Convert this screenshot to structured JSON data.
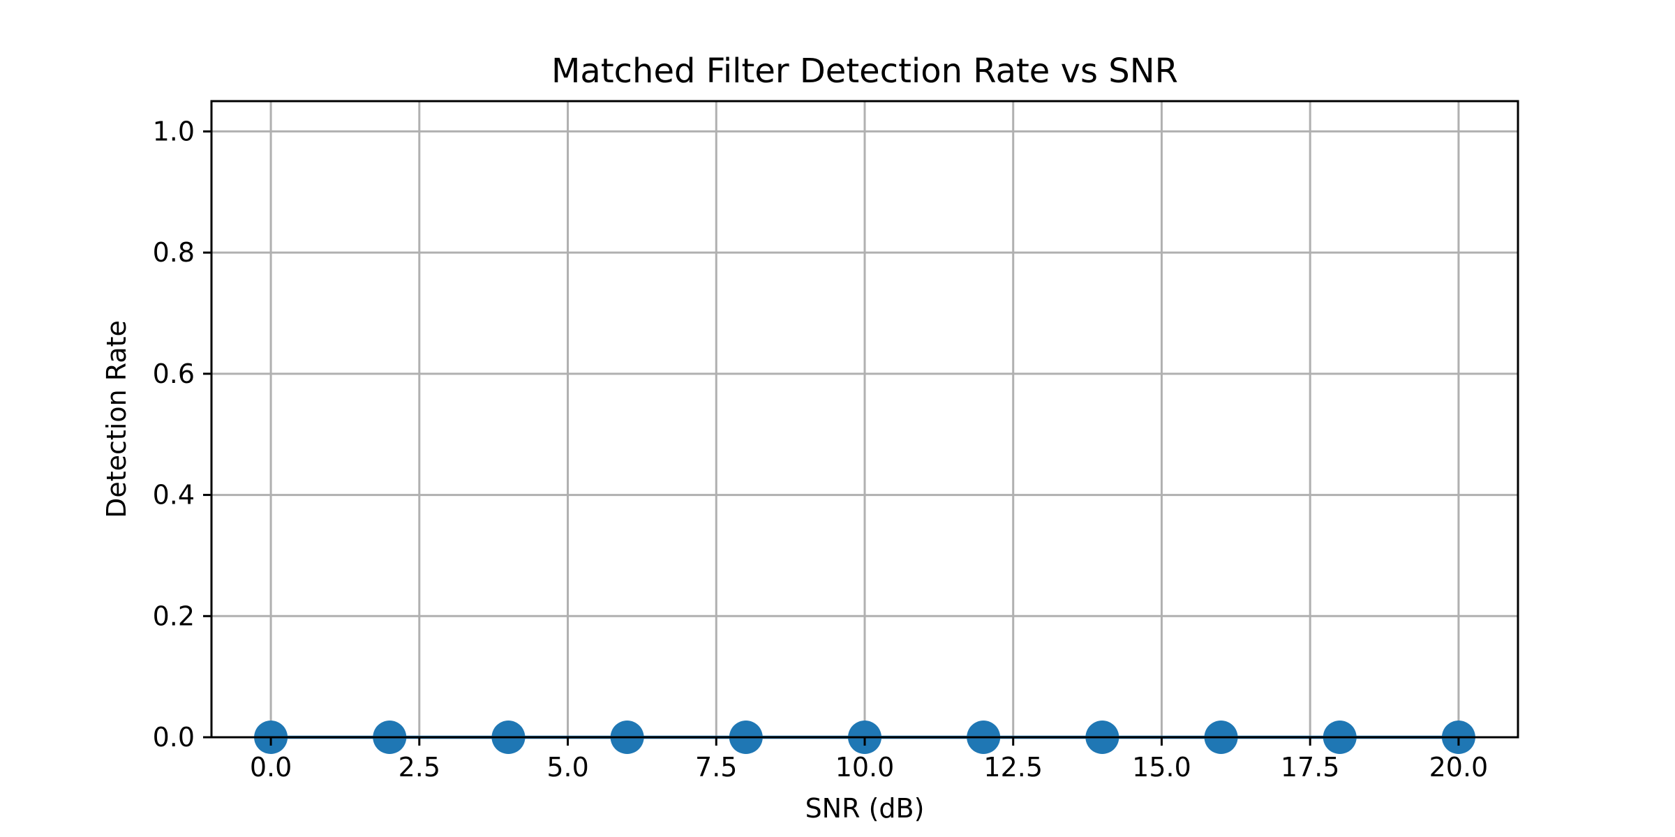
{
  "chart_data": {
    "type": "line",
    "title": "Matched Filter Detection Rate vs SNR",
    "xlabel": "SNR (dB)",
    "ylabel": "Detection Rate",
    "xlim": [
      -1.0,
      21.0
    ],
    "ylim": [
      0.0,
      1.05
    ],
    "x_ticks": [
      "0.0",
      "2.5",
      "5.0",
      "7.5",
      "10.0",
      "12.5",
      "15.0",
      "17.5",
      "20.0"
    ],
    "y_ticks": [
      "0.0",
      "0.2",
      "0.4",
      "0.6",
      "0.8",
      "1.0"
    ],
    "grid": true,
    "series": [
      {
        "x": [
          0,
          2,
          4,
          6,
          8,
          10,
          12,
          14,
          16,
          18,
          20
        ],
        "values": [
          0.0,
          0.0,
          0.0,
          0.0,
          0.0,
          0.0,
          0.0,
          0.0,
          0.0,
          0.0,
          0.0
        ],
        "color": "#1f77b4",
        "marker": "circle"
      }
    ]
  }
}
